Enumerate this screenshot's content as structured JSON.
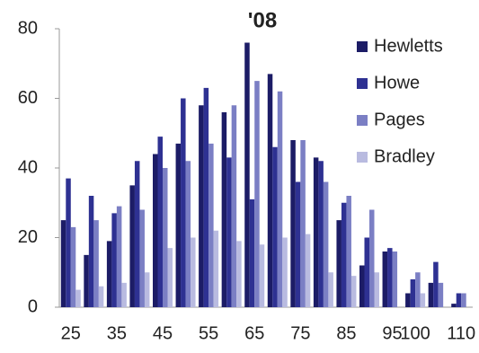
{
  "chart_data": {
    "type": "bar",
    "title": "'08",
    "categories": [
      "25",
      null,
      "35",
      null,
      "45",
      null,
      "55",
      null,
      "65",
      null,
      "75",
      null,
      "85",
      null,
      "95",
      "100",
      null,
      "110"
    ],
    "series": [
      {
        "name": "Hewletts",
        "color": "#1c1c66",
        "values": [
          25,
          15,
          19,
          35,
          44,
          47,
          58,
          56,
          76,
          67,
          48,
          43,
          25,
          12,
          16,
          4,
          7,
          1
        ]
      },
      {
        "name": "Howe",
        "color": "#2e3192",
        "values": [
          37,
          32,
          27,
          42,
          49,
          60,
          63,
          43,
          31,
          46,
          36,
          42,
          30,
          20,
          17,
          8,
          13,
          4
        ]
      },
      {
        "name": "Pages",
        "color": "#7b7fc4",
        "values": [
          23,
          25,
          29,
          28,
          40,
          42,
          47,
          58,
          65,
          62,
          48,
          36,
          32,
          28,
          16,
          10,
          7,
          4
        ]
      },
      {
        "name": "Bradley",
        "color": "#b9bbe0",
        "values": [
          5,
          6,
          7,
          10,
          17,
          20,
          22,
          19,
          18,
          20,
          21,
          10,
          9,
          10,
          0,
          4,
          0,
          0
        ]
      }
    ],
    "ylim": [
      0,
      80
    ],
    "yticks": [
      0,
      20,
      40,
      60,
      80
    ],
    "grid": false,
    "legend": "top-right"
  }
}
